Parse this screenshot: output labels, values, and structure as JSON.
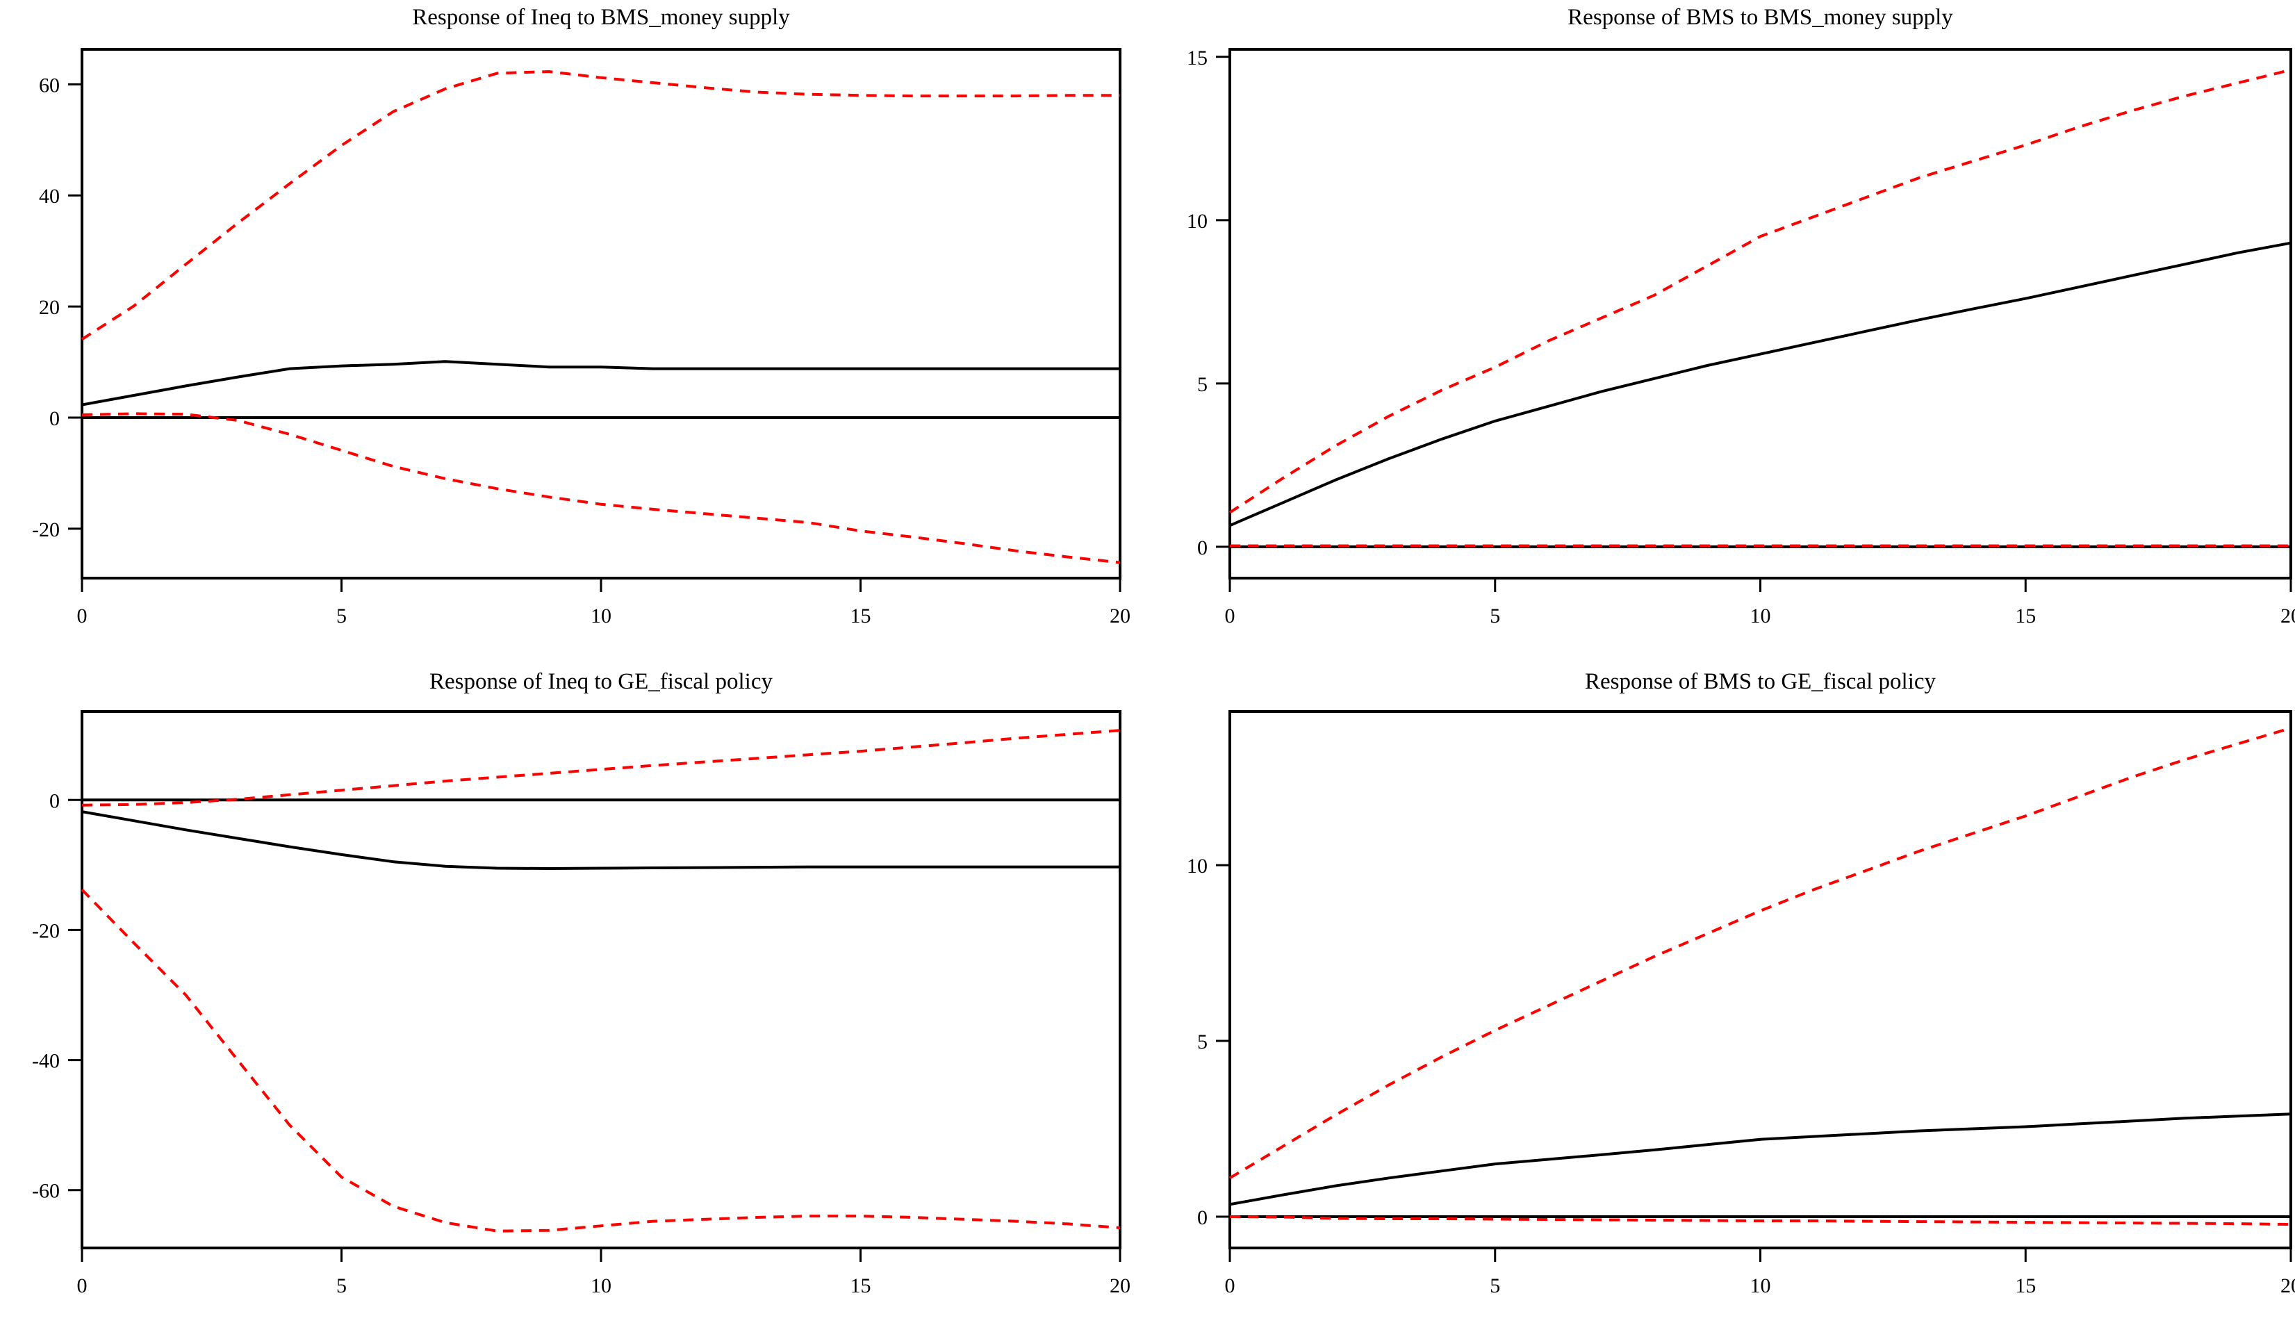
{
  "figure": {
    "background": "#ffffff",
    "axis_color": "#000000",
    "center_line_color": "#000000",
    "band_line_color": "#ff0000"
  },
  "chart_data": [
    {
      "type": "line",
      "position": "top-left",
      "title": "Response of Ineq to BMS_money supply",
      "x": [
        0,
        1,
        2,
        3,
        4,
        5,
        6,
        7,
        8,
        9,
        10,
        11,
        12,
        13,
        14,
        15,
        16,
        17,
        18,
        19,
        20
      ],
      "xlim": [
        0,
        20
      ],
      "ylim": [
        -28.9,
        66.3
      ],
      "xticks": [
        0,
        5,
        10,
        15,
        20
      ],
      "yticks": [
        -20,
        0,
        20,
        40,
        60
      ],
      "grid": false,
      "zero_line": true,
      "series": [
        {
          "name": "upper-band",
          "style": "dashed",
          "color": "#ff0000",
          "values": [
            14.1,
            20.1,
            27.6,
            35.0,
            42.1,
            49.0,
            55.1,
            59.2,
            62.0,
            62.3,
            61.2,
            60.3,
            59.4,
            58.6,
            58.2,
            58.0,
            57.9,
            57.9,
            57.9,
            58.0,
            58.0
          ]
        },
        {
          "name": "center-response",
          "style": "solid",
          "color": "#000000",
          "values": [
            2.3,
            4.0,
            5.7,
            7.3,
            8.8,
            9.3,
            9.6,
            10.1,
            9.6,
            9.1,
            9.1,
            8.8,
            8.8,
            8.8,
            8.8,
            8.8,
            8.8,
            8.8,
            8.8,
            8.8,
            8.8
          ]
        },
        {
          "name": "lower-band",
          "style": "dashed",
          "color": "#ff0000",
          "values": [
            0.5,
            0.7,
            0.6,
            -0.5,
            -3.0,
            -5.9,
            -8.8,
            -11.0,
            -12.8,
            -14.3,
            -15.6,
            -16.5,
            -17.3,
            -18.1,
            -18.9,
            -20.4,
            -21.5,
            -22.7,
            -24.0,
            -25.1,
            -26.1
          ]
        }
      ]
    },
    {
      "type": "line",
      "position": "top-right",
      "title": "Response of BMS to BMS_money supply",
      "x": [
        0,
        1,
        2,
        3,
        4,
        5,
        6,
        7,
        8,
        9,
        10,
        11,
        12,
        13,
        14,
        15,
        16,
        17,
        18,
        19,
        20
      ],
      "xlim": [
        0,
        20
      ],
      "ylim": [
        -0.96,
        15.23
      ],
      "xticks": [
        0,
        5,
        10,
        15,
        20
      ],
      "yticks": [
        0,
        5,
        10,
        15
      ],
      "grid": false,
      "zero_line": true,
      "series": [
        {
          "name": "upper-band",
          "style": "dashed",
          "color": "#ff0000",
          "values": [
            1.05,
            2.1,
            3.1,
            4.0,
            4.8,
            5.5,
            6.3,
            7.0,
            7.7,
            8.6,
            9.5,
            10.1,
            10.7,
            11.3,
            11.8,
            12.3,
            12.85,
            13.35,
            13.8,
            14.2,
            14.6
          ]
        },
        {
          "name": "center-response",
          "style": "solid",
          "color": "#000000",
          "values": [
            0.65,
            1.35,
            2.05,
            2.7,
            3.3,
            3.85,
            4.3,
            4.75,
            5.15,
            5.55,
            5.9,
            6.25,
            6.6,
            6.95,
            7.28,
            7.6,
            7.95,
            8.3,
            8.65,
            9.0,
            9.3
          ]
        },
        {
          "name": "lower-band",
          "style": "dashed",
          "color": "#ff0000",
          "values": [
            0.03,
            0.03,
            0.03,
            0.03,
            0.03,
            0.03,
            0.03,
            0.03,
            0.03,
            0.03,
            0.03,
            0.03,
            0.03,
            0.03,
            0.03,
            0.03,
            0.03,
            0.03,
            0.03,
            0.03,
            0.03
          ]
        }
      ]
    },
    {
      "type": "line",
      "position": "bottom-left",
      "title": "Response of Ineq to GE_fiscal policy",
      "x": [
        0,
        1,
        2,
        3,
        4,
        5,
        6,
        7,
        8,
        9,
        10,
        11,
        12,
        13,
        14,
        15,
        16,
        17,
        18,
        19,
        20
      ],
      "xlim": [
        0,
        20
      ],
      "ylim": [
        -68.9,
        13.6
      ],
      "xticks": [
        0,
        5,
        10,
        15,
        20
      ],
      "yticks": [
        0,
        -20,
        -40,
        -60
      ],
      "grid": false,
      "zero_line": true,
      "series": [
        {
          "name": "upper-band",
          "style": "dashed",
          "color": "#ff0000",
          "values": [
            -0.8,
            -0.7,
            -0.4,
            0.1,
            0.8,
            1.5,
            2.2,
            2.9,
            3.5,
            4.1,
            4.7,
            5.3,
            5.85,
            6.4,
            6.95,
            7.5,
            8.15,
            8.8,
            9.5,
            10.1,
            10.7
          ]
        },
        {
          "name": "center-response",
          "style": "solid",
          "color": "#000000",
          "values": [
            -1.8,
            -3.2,
            -4.6,
            -5.9,
            -7.2,
            -8.4,
            -9.5,
            -10.2,
            -10.5,
            -10.55,
            -10.5,
            -10.45,
            -10.4,
            -10.35,
            -10.3,
            -10.3,
            -10.3,
            -10.3,
            -10.3,
            -10.3,
            -10.3
          ]
        },
        {
          "name": "lower-band",
          "style": "dashed",
          "color": "#ff0000",
          "values": [
            -13.8,
            -22.0,
            -30.0,
            -40.0,
            -50.0,
            -58.0,
            -62.5,
            -65.0,
            -66.3,
            -66.2,
            -65.5,
            -64.8,
            -64.5,
            -64.2,
            -64.0,
            -64.0,
            -64.2,
            -64.5,
            -64.8,
            -65.2,
            -65.8
          ]
        }
      ]
    },
    {
      "type": "line",
      "position": "bottom-right",
      "title": "Response of BMS to GE_fiscal policy",
      "x": [
        0,
        1,
        2,
        3,
        4,
        5,
        6,
        7,
        8,
        9,
        10,
        11,
        12,
        13,
        14,
        15,
        16,
        17,
        18,
        19,
        20
      ],
      "xlim": [
        0,
        20
      ],
      "ylim": [
        -0.89,
        14.37
      ],
      "xticks": [
        0,
        5,
        10,
        15,
        20
      ],
      "yticks": [
        0,
        5,
        10
      ],
      "grid": false,
      "zero_line": true,
      "series": [
        {
          "name": "upper-band",
          "style": "dashed",
          "color": "#ff0000",
          "values": [
            1.1,
            2.0,
            2.9,
            3.75,
            4.55,
            5.3,
            6.0,
            6.7,
            7.4,
            8.05,
            8.7,
            9.3,
            9.85,
            10.4,
            10.9,
            11.4,
            11.95,
            12.5,
            13.0,
            13.45,
            13.9
          ]
        },
        {
          "name": "center-response",
          "style": "solid",
          "color": "#000000",
          "values": [
            0.35,
            0.62,
            0.88,
            1.1,
            1.3,
            1.5,
            1.63,
            1.76,
            1.9,
            2.05,
            2.2,
            2.28,
            2.36,
            2.44,
            2.5,
            2.56,
            2.64,
            2.72,
            2.8,
            2.86,
            2.92
          ]
        },
        {
          "name": "lower-band",
          "style": "dashed",
          "color": "#ff0000",
          "values": [
            0.0,
            -0.01,
            -0.05,
            -0.06,
            -0.06,
            -0.07,
            -0.08,
            -0.09,
            -0.1,
            -0.11,
            -0.12,
            -0.12,
            -0.13,
            -0.14,
            -0.15,
            -0.16,
            -0.17,
            -0.18,
            -0.19,
            -0.2,
            -0.22
          ]
        }
      ]
    }
  ]
}
